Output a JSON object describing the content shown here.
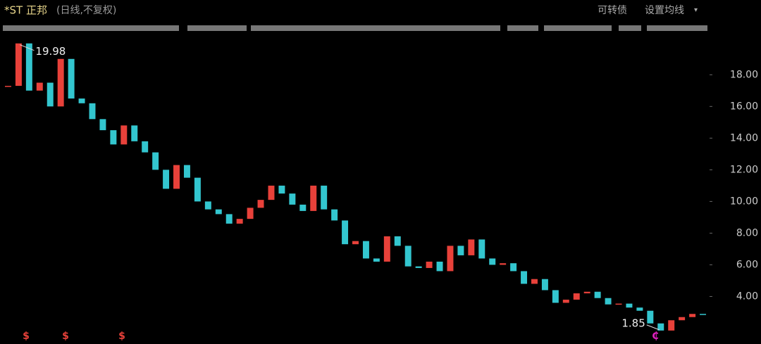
{
  "header": {
    "title": "*ST 正邦",
    "subtitle": "(日线,不复权)",
    "convertible": "可转债",
    "ma_setting": "设置均线",
    "dropdown": "▾"
  },
  "chart_data": {
    "type": "candle",
    "values": [
      17.3,
      19.98,
      17,
      17.5,
      16,
      19,
      16.5,
      16.2,
      15.2,
      14.5,
      13.6,
      14.8,
      13.8,
      13.1,
      12.0,
      10.8,
      12.3,
      11.5,
      10.0,
      9.5,
      9.2,
      8.6,
      8.9,
      9.6,
      10.1,
      11.0,
      10.5,
      9.8,
      9.4,
      11.0,
      9.5,
      8.8,
      7.3,
      7.5,
      6.4,
      6.2,
      7.8,
      7.2,
      5.9,
      5.8,
      6.2,
      5.6,
      7.2,
      6.6,
      7.6,
      6.4,
      6.0,
      6.1,
      5.6,
      4.8,
      5.1,
      4.4,
      3.6,
      3.8,
      4.2,
      4.3,
      3.9,
      3.5,
      3.55,
      3.3,
      3.1,
      2.3,
      1.85,
      2.5,
      2.7,
      2.9,
      2.85
    ],
    "up_color": "#e8413a",
    "down_color": "#33c6cf",
    "ylim": [
      1.0,
      20.5
    ],
    "yticks": [
      {
        "value": 4,
        "label": "4.00"
      },
      {
        "value": 6,
        "label": "6.00"
      },
      {
        "value": 8,
        "label": "8.00"
      },
      {
        "value": 10,
        "label": "10.00"
      },
      {
        "value": 12,
        "label": "12.00"
      },
      {
        "value": 14,
        "label": "14.00"
      },
      {
        "value": 16,
        "label": "16.00"
      },
      {
        "value": 18,
        "label": "18.00"
      }
    ],
    "markers": [
      "$",
      "$",
      "$",
      "₵"
    ]
  }
}
